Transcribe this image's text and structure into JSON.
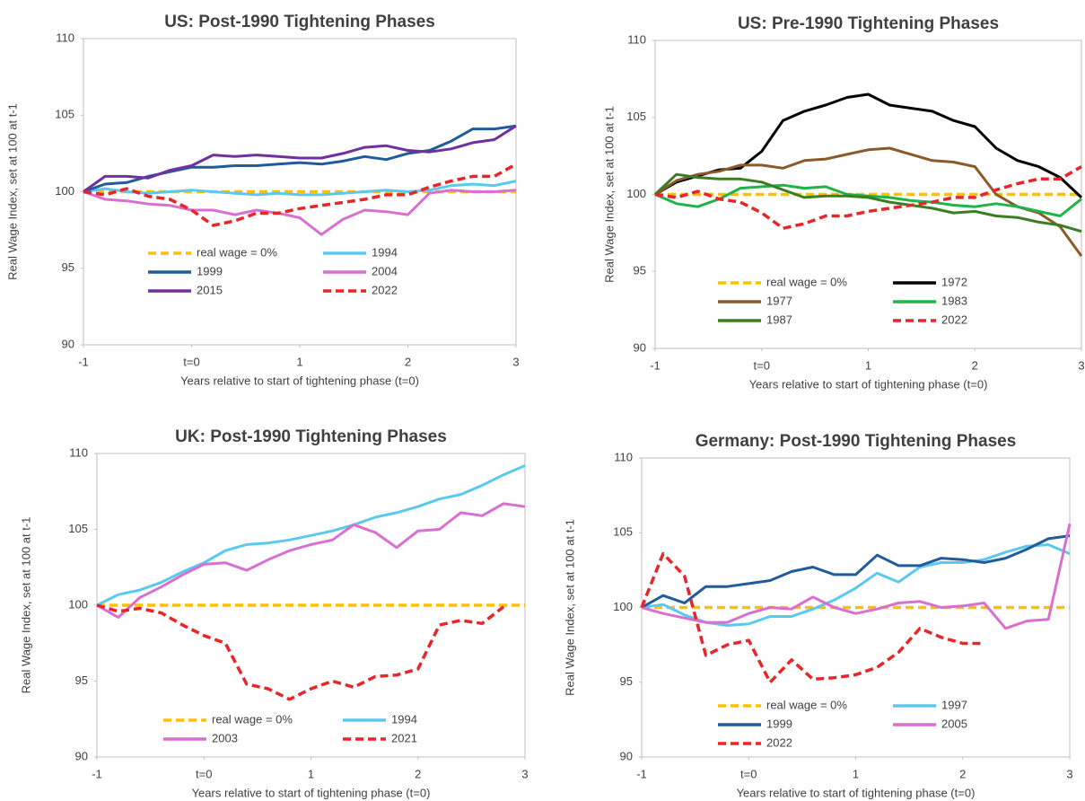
{
  "chart_data": [
    {
      "type": "line",
      "title": "US: Post-1990 Tightening Phases",
      "y_label": "Real Wage Index, set at 100 at t-1",
      "x_label": "Years relative to start of tightening phase (t=0)",
      "x": [
        -1,
        -0.8,
        -0.6,
        -0.4,
        -0.2,
        0,
        0.2,
        0.4,
        0.6,
        0.8,
        1,
        1.2,
        1.4,
        1.6,
        1.8,
        2,
        2.2,
        2.4,
        2.6,
        2.8,
        3
      ],
      "xlim": [
        -1,
        3
      ],
      "xticks": [
        -1,
        {
          "value": 0,
          "label": "t=0"
        },
        1,
        2,
        3
      ],
      "ylim": [
        90,
        110
      ],
      "yticks": [
        90,
        95,
        100,
        105,
        110
      ],
      "series": [
        {
          "name": "real wage = 0%",
          "color": "#ffc000",
          "dashed": true,
          "values": [
            100,
            100,
            100,
            100,
            100,
            100,
            100,
            100,
            100,
            100,
            100,
            100,
            100,
            100,
            100,
            100,
            100,
            100,
            100,
            100,
            100
          ]
        },
        {
          "name": "1994",
          "color": "#5bc8ef",
          "dashed": false,
          "values": [
            100,
            100.2,
            100,
            99.9,
            100,
            100.1,
            100,
            99.9,
            99.8,
            99.9,
            99.8,
            99.8,
            99.9,
            100,
            100.1,
            100,
            100.1,
            100.4,
            100.5,
            100.4,
            100.7
          ]
        },
        {
          "name": "1999",
          "color": "#1f5c99",
          "dashed": false,
          "values": [
            100,
            100.5,
            100.6,
            101,
            101.3,
            101.6,
            101.6,
            101.7,
            101.7,
            101.8,
            101.9,
            101.8,
            102,
            102.3,
            102.1,
            102.5,
            102.7,
            103.3,
            104.1,
            104.1,
            104.3
          ]
        },
        {
          "name": "2004",
          "color": "#d96fcf",
          "dashed": false,
          "values": [
            100,
            99.5,
            99.4,
            99.2,
            99.1,
            98.8,
            98.8,
            98.5,
            98.8,
            98.6,
            98.3,
            97.2,
            98.2,
            98.8,
            98.7,
            98.5,
            99.9,
            100.1,
            100,
            100,
            100.1
          ]
        },
        {
          "name": "2015",
          "color": "#7030a0",
          "dashed": false,
          "values": [
            100,
            101,
            101,
            100.9,
            101.4,
            101.7,
            102.4,
            102.3,
            102.4,
            102.3,
            102.2,
            102.2,
            102.5,
            102.9,
            103,
            102.7,
            102.6,
            102.8,
            103.2,
            103.4,
            104.3
          ]
        },
        {
          "name": "2022",
          "color": "#e8262a",
          "dashed": true,
          "values": [
            100,
            99.8,
            100.2,
            99.7,
            99.5,
            98.8,
            97.8,
            98.1,
            98.6,
            98.6,
            98.9,
            99.1,
            99.3,
            99.5,
            99.8,
            99.8,
            100.3,
            100.7,
            101,
            101,
            101.8
          ]
        }
      ]
    },
    {
      "type": "line",
      "title": "US: Pre-1990 Tightening Phases",
      "y_label": "Real Wage Index, set at 100 at t-1",
      "x_label": "Years relative to start of tightening phase (t=0)",
      "x": [
        -1,
        -0.8,
        -0.6,
        -0.4,
        -0.2,
        0,
        0.2,
        0.4,
        0.6,
        0.8,
        1,
        1.2,
        1.4,
        1.6,
        1.8,
        2,
        2.2,
        2.4,
        2.6,
        2.8,
        3
      ],
      "xlim": [
        -1,
        3
      ],
      "xticks": [
        -1,
        {
          "value": 0,
          "label": "t=0"
        },
        1,
        2,
        3
      ],
      "ylim": [
        90,
        110
      ],
      "yticks": [
        90,
        95,
        100,
        105,
        110
      ],
      "series": [
        {
          "name": "real wage = 0%",
          "color": "#ffc000",
          "dashed": true,
          "values": [
            100,
            100,
            100,
            100,
            100,
            100,
            100,
            100,
            100,
            100,
            100,
            100,
            100,
            100,
            100,
            100,
            100,
            100,
            100,
            100,
            100
          ]
        },
        {
          "name": "1972",
          "color": "#000000",
          "dashed": false,
          "values": [
            100,
            100.8,
            101.2,
            101.6,
            101.7,
            102.8,
            104.8,
            105.4,
            105.8,
            106.3,
            106.5,
            105.8,
            105.6,
            105.4,
            104.8,
            104.4,
            103,
            102.2,
            101.8,
            101.1,
            99.8
          ]
        },
        {
          "name": "1977",
          "color": "#8b5a2b",
          "dashed": false,
          "values": [
            100,
            100.9,
            101.3,
            101.5,
            101.9,
            101.9,
            101.7,
            102.2,
            102.3,
            102.6,
            102.9,
            103,
            102.6,
            102.2,
            102.1,
            101.8,
            100,
            99.2,
            98.8,
            97.9,
            96
          ]
        },
        {
          "name": "1983",
          "color": "#1fb34a",
          "dashed": false,
          "values": [
            100,
            99.4,
            99.2,
            99.7,
            100.4,
            100.5,
            100.6,
            100.4,
            100.5,
            100,
            99.9,
            99.8,
            99.6,
            99.5,
            99.3,
            99.2,
            99.4,
            99.2,
            98.9,
            98.6,
            99.7
          ]
        },
        {
          "name": "1987",
          "color": "#3b7d23",
          "dashed": false,
          "values": [
            100,
            101.3,
            101.1,
            101,
            101,
            100.8,
            100.3,
            99.8,
            99.9,
            99.9,
            99.8,
            99.5,
            99.3,
            99.1,
            98.8,
            98.9,
            98.6,
            98.5,
            98.2,
            98,
            97.6
          ]
        },
        {
          "name": "2022",
          "color": "#e8262a",
          "dashed": true,
          "values": [
            100,
            99.8,
            100.2,
            99.7,
            99.5,
            98.8,
            97.8,
            98.1,
            98.6,
            98.6,
            98.9,
            99.1,
            99.3,
            99.5,
            99.8,
            99.8,
            100.3,
            100.7,
            101,
            101,
            101.8
          ]
        }
      ]
    },
    {
      "type": "line",
      "title": "UK: Post-1990 Tightening Phases",
      "y_label": "Real Wage Index, set at 100 at t-1",
      "x_label": "Years relative to start of tightening phase (t=0)",
      "x": [
        -1,
        -0.8,
        -0.6,
        -0.4,
        -0.2,
        0,
        0.2,
        0.4,
        0.6,
        0.8,
        1,
        1.2,
        1.4,
        1.6,
        1.8,
        2,
        2.2,
        2.4,
        2.6,
        2.8,
        3
      ],
      "xlim": [
        -1,
        3
      ],
      "xticks": [
        -1,
        {
          "value": 0,
          "label": "t=0"
        },
        1,
        2,
        3
      ],
      "ylim": [
        90,
        110
      ],
      "yticks": [
        90,
        95,
        100,
        105,
        110
      ],
      "series": [
        {
          "name": "real wage = 0%",
          "color": "#ffc000",
          "dashed": true,
          "values": [
            100,
            100,
            100,
            100,
            100,
            100,
            100,
            100,
            100,
            100,
            100,
            100,
            100,
            100,
            100,
            100,
            100,
            100,
            100,
            100,
            100
          ]
        },
        {
          "name": "1994",
          "color": "#5bc8ef",
          "dashed": false,
          "values": [
            100,
            100.7,
            101,
            101.5,
            102.2,
            102.8,
            103.6,
            104,
            104.1,
            104.3,
            104.6,
            104.9,
            105.3,
            105.8,
            106.1,
            106.5,
            107,
            107.3,
            107.9,
            108.6,
            109.2
          ]
        },
        {
          "name": "2003",
          "color": "#d96fcf",
          "dashed": false,
          "values": [
            100,
            99.2,
            100.5,
            101.2,
            102,
            102.7,
            102.8,
            102.3,
            103,
            103.6,
            104,
            104.3,
            105.3,
            104.8,
            103.8,
            104.9,
            105,
            106.1,
            105.9,
            106.7,
            106.5
          ]
        },
        {
          "name": "2021",
          "color": "#e8262a",
          "dashed": true,
          "values": [
            100,
            99.6,
            99.8,
            99.5,
            98.7,
            98,
            97.5,
            94.8,
            94.5,
            93.8,
            94.5,
            95,
            94.6,
            95.3,
            95.4,
            95.8,
            98.7,
            99,
            98.8,
            99.9,
            null
          ]
        }
      ]
    },
    {
      "type": "line",
      "title": "Germany: Post-1990 Tightening Phases",
      "y_label": "Real Wage Index, set at 100 at t-1",
      "x_label": "Years relative to start of tightening phase (t=0)",
      "x": [
        -1,
        -0.8,
        -0.6,
        -0.4,
        -0.2,
        0,
        0.2,
        0.4,
        0.6,
        0.8,
        1,
        1.2,
        1.4,
        1.6,
        1.8,
        2,
        2.2,
        2.4,
        2.6,
        2.8,
        3
      ],
      "xlim": [
        -1,
        3
      ],
      "xticks": [
        -1,
        {
          "value": 0,
          "label": "t=0"
        },
        1,
        2,
        3
      ],
      "ylim": [
        90,
        110
      ],
      "yticks": [
        90,
        95,
        100,
        105,
        110
      ],
      "series": [
        {
          "name": "real wage = 0%",
          "color": "#ffc000",
          "dashed": true,
          "values": [
            100,
            100,
            100,
            100,
            100,
            100,
            100,
            100,
            100,
            100,
            100,
            100,
            100,
            100,
            100,
            100,
            100,
            100,
            100,
            100,
            100
          ]
        },
        {
          "name": "1997",
          "color": "#5bc8ef",
          "dashed": false,
          "values": [
            100,
            100.2,
            99.5,
            99,
            98.8,
            98.9,
            99.4,
            99.4,
            99.9,
            100.5,
            101.3,
            102.3,
            101.7,
            102.7,
            103,
            103,
            103.2,
            103.7,
            104.1,
            104.2,
            103.6
          ]
        },
        {
          "name": "1999",
          "color": "#1f5c99",
          "dashed": false,
          "values": [
            100,
            100.8,
            100.3,
            101.4,
            101.4,
            101.6,
            101.8,
            102.4,
            102.7,
            102.2,
            102.2,
            103.5,
            102.8,
            102.8,
            103.3,
            103.2,
            103,
            103.3,
            103.9,
            104.6,
            104.8
          ]
        },
        {
          "name": "2005",
          "color": "#d96fcf",
          "dashed": false,
          "values": [
            100,
            99.6,
            99.3,
            99,
            99,
            99.6,
            100,
            99.9,
            100.7,
            100,
            99.6,
            99.9,
            100.3,
            100.4,
            100,
            100.1,
            100.3,
            98.6,
            99.1,
            99.2,
            105.6
          ]
        },
        {
          "name": "2022",
          "color": "#e8262a",
          "dashed": true,
          "values": [
            100,
            103.6,
            102.1,
            96.8,
            97.5,
            97.8,
            95,
            96.5,
            95.2,
            95.3,
            95.5,
            96,
            97,
            98.6,
            98,
            97.6,
            97.6,
            null,
            null,
            null,
            null
          ]
        }
      ]
    }
  ]
}
